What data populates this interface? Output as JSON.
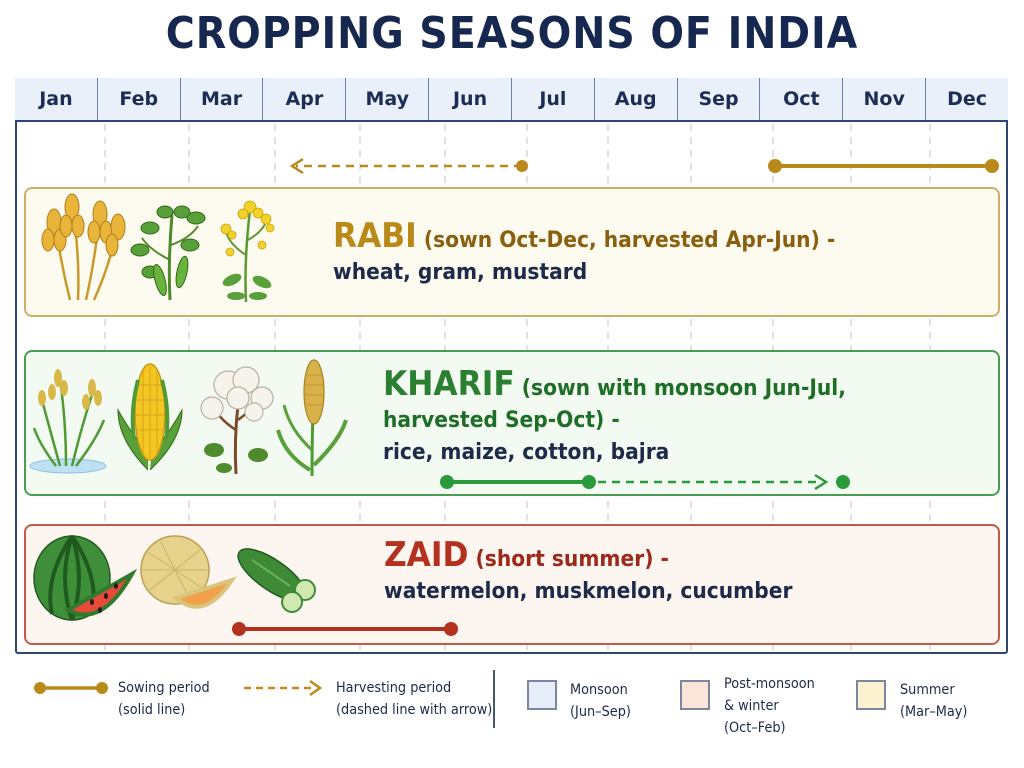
{
  "title": "CROPPING SEASONS OF INDIA",
  "months": [
    "Jan",
    "Feb",
    "Mar",
    "Apr",
    "May",
    "Jun",
    "Jul",
    "Aug",
    "Sep",
    "Oct",
    "Nov",
    "Dec"
  ],
  "seasons": {
    "rabi": {
      "name": "RABI",
      "period": "(sown Oct-Dec, harvested Apr-Jun) -",
      "crops": "wheat, gram, mustard",
      "color": "#b98a1a"
    },
    "kharif": {
      "name": "KHARIF",
      "period_line1": "(sown with monsoon Jun-Jul,",
      "period_line2": "harvested Sep-Oct) -",
      "crops": "rice, maize, cotton, bajra",
      "color": "#2b7f31"
    },
    "zaid": {
      "name": "ZAID",
      "period": "(short summer) -",
      "crops": "watermelon, muskmelon, cucumber",
      "color": "#b2311f"
    }
  },
  "legend": {
    "sowing_label": "Sowing period",
    "sowing_note": "(solid line)",
    "harvest_label": "Harvesting period",
    "harvest_note": "(dashed line with arrow)",
    "monsoon_label": "Monsoon",
    "monsoon_range": "(Jun–Sep)",
    "postmonsoon_line1": "Post-monsoon",
    "postmonsoon_line2": "& winter",
    "postmonsoon_range": "(Oct–Feb)",
    "summer_label": "Summer",
    "summer_range": "(Mar–May)",
    "colors": {
      "monsoon": "#e6eef9",
      "postmonsoon": "#fbe5d8",
      "summer": "#fdf2cf"
    }
  }
}
